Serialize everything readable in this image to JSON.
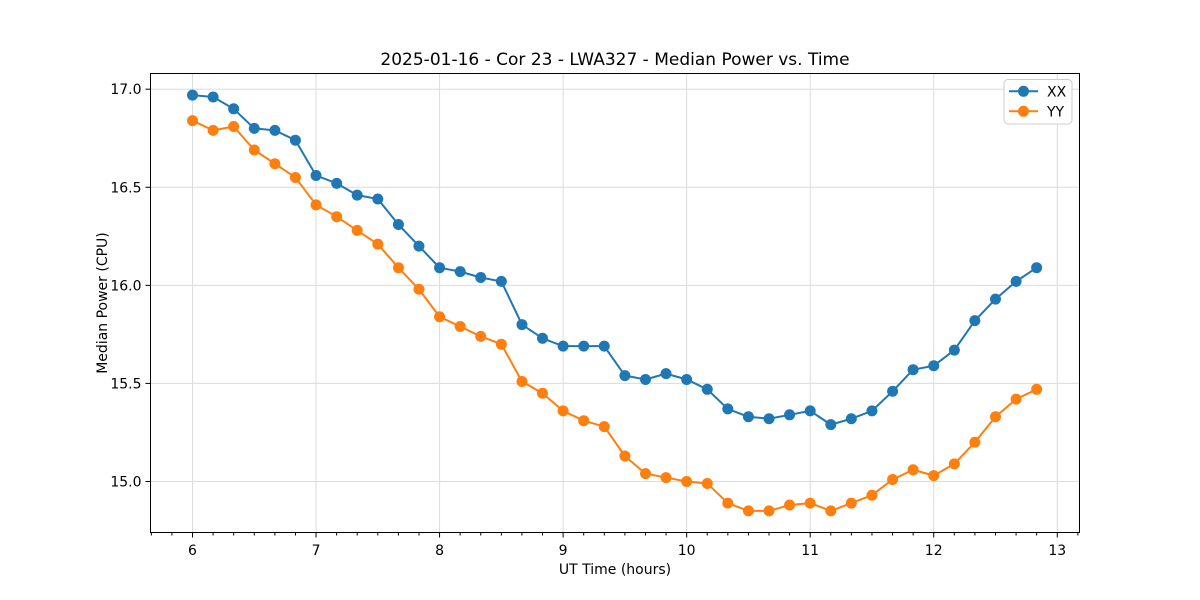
{
  "chart_data": {
    "type": "line",
    "title": "2025-01-16 - Cor 23 - LWA327 - Median Power vs. Time",
    "xlabel": "UT Time (hours)",
    "ylabel": "Median Power (CPU)",
    "xlim": [
      5.66,
      13.18
    ],
    "ylim": [
      14.74,
      17.08
    ],
    "x_major_ticks": [
      6,
      7,
      8,
      9,
      10,
      11,
      12,
      13
    ],
    "x_tick_labels": [
      "6",
      "7",
      "8",
      "9",
      "10",
      "11",
      "12",
      "13"
    ],
    "x_minor_divisions_per_unit": 6,
    "y_major_ticks": [
      15.0,
      15.5,
      16.0,
      16.5,
      17.0
    ],
    "y_tick_labels": [
      "15.0",
      "15.5",
      "16.0",
      "16.5",
      "17.0"
    ],
    "grid": true,
    "legend": {
      "position": "upper right",
      "entries": [
        "XX",
        "YY"
      ]
    },
    "colors": {
      "grid": "#dcdcdc",
      "spine": "#000000",
      "text": "#000000",
      "legend_border": "#cccccc",
      "legend_fill": "rgba(255,255,255,0.85)"
    },
    "x": [
      6.0,
      6.167,
      6.333,
      6.5,
      6.667,
      6.833,
      7.0,
      7.167,
      7.333,
      7.5,
      7.667,
      7.833,
      8.0,
      8.167,
      8.333,
      8.5,
      8.667,
      8.833,
      9.0,
      9.167,
      9.333,
      9.5,
      9.667,
      9.833,
      10.0,
      10.167,
      10.333,
      10.5,
      10.667,
      10.833,
      11.0,
      11.167,
      11.333,
      11.5,
      11.667,
      11.833,
      12.0,
      12.167,
      12.333,
      12.5,
      12.667,
      12.833
    ],
    "series": [
      {
        "name": "XX",
        "color": "#1f77b4",
        "values": [
          16.97,
          16.96,
          16.9,
          16.8,
          16.79,
          16.74,
          16.56,
          16.52,
          16.46,
          16.44,
          16.31,
          16.2,
          16.09,
          16.07,
          16.04,
          16.02,
          15.8,
          15.73,
          15.69,
          15.69,
          15.69,
          15.54,
          15.52,
          15.55,
          15.52,
          15.47,
          15.37,
          15.33,
          15.32,
          15.34,
          15.36,
          15.29,
          15.32,
          15.36,
          15.46,
          15.57,
          15.59,
          15.67,
          15.82,
          15.93,
          16.02,
          16.09
        ]
      },
      {
        "name": "YY",
        "color": "#ff7f0e",
        "values": [
          16.84,
          16.79,
          16.81,
          16.69,
          16.62,
          16.55,
          16.41,
          16.35,
          16.28,
          16.21,
          16.09,
          15.98,
          15.84,
          15.79,
          15.74,
          15.7,
          15.51,
          15.45,
          15.36,
          15.31,
          15.28,
          15.13,
          15.04,
          15.02,
          15.0,
          14.99,
          14.89,
          14.85,
          14.85,
          14.88,
          14.89,
          14.85,
          14.89,
          14.93,
          15.01,
          15.06,
          15.03,
          15.09,
          15.2,
          15.33,
          15.42,
          15.47
        ]
      }
    ]
  }
}
